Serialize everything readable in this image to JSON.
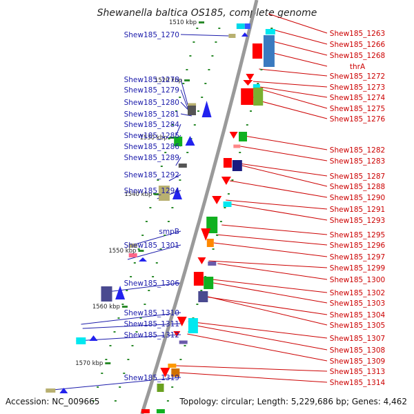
{
  "title": "Shewanella baltica OS185, complete genome",
  "footer": {
    "accession": "Accession: NC_009665",
    "topology": "Topology: circular; Length: 5,229,686 bp; Genes: 4,462"
  },
  "colors": {
    "left_label": "#1a1aaa",
    "right_label": "#cc0000",
    "backbone": "#9a9a9a",
    "tick": "#2a8a2a"
  },
  "kbp_ticks": [
    "1510 kbp",
    "1520 kbp",
    "1530 kbp",
    "1540 kbp",
    "1550 kbp",
    "1560 kbp",
    "1570 kbp"
  ],
  "left_labels": [
    "Shew185_1270",
    "Shew185_1278",
    "Shew185_1279",
    "Shew185_1280",
    "Shew185_1281",
    "Shew185_1284",
    "Shew185_1285",
    "Shew185_1286",
    "Shew185_1289",
    "Shew185_1292",
    "Shew185_1294",
    "smpB",
    "Shew185_1301",
    "Shew185_1306",
    "Shew185_1310",
    "Shew185_1311",
    "Shew185_1312",
    "Shew185_1319"
  ],
  "right_labels": [
    "Shew185_1263",
    "Shew185_1266",
    "Shew185_1268",
    "thrA",
    "Shew185_1272",
    "Shew185_1273",
    "Shew185_1274",
    "Shew185_1275",
    "Shew185_1276",
    "Shew185_1282",
    "Shew185_1283",
    "Shew185_1287",
    "Shew185_1288",
    "Shew185_1290",
    "Shew185_1291",
    "Shew185_1293",
    "Shew185_1295",
    "Shew185_1296",
    "Shew185_1297",
    "Shew185_1299",
    "Shew185_1300",
    "Shew185_1302",
    "Shew185_1303",
    "Shew185_1304",
    "Shew185_1305",
    "Shew185_1307",
    "Shew185_1308",
    "Shew185_1309",
    "Shew185_1313",
    "Shew185_1314"
  ]
}
